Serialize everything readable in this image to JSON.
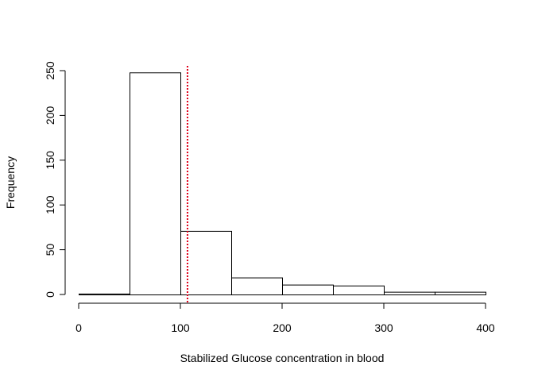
{
  "chart_data": {
    "type": "bar",
    "title": "",
    "xlabel": "Stabilized Glucose concentration in blood",
    "ylabel": "Frequency",
    "bins": [
      {
        "start": 0,
        "end": 50,
        "count": 1
      },
      {
        "start": 50,
        "end": 100,
        "count": 248
      },
      {
        "start": 100,
        "end": 150,
        "count": 71
      },
      {
        "start": 150,
        "end": 200,
        "count": 19
      },
      {
        "start": 200,
        "end": 250,
        "count": 11
      },
      {
        "start": 250,
        "end": 300,
        "count": 10
      },
      {
        "start": 300,
        "end": 350,
        "count": 3
      },
      {
        "start": 350,
        "end": 400,
        "count": 3
      }
    ],
    "xlim": [
      0,
      400
    ],
    "ylim": [
      0,
      250
    ],
    "x_ticks": [
      0,
      100,
      200,
      300,
      400
    ],
    "y_ticks": [
      0,
      50,
      100,
      150,
      200,
      250
    ],
    "mean_line": {
      "x": 107,
      "color": "#e0001a",
      "style": "dotted"
    },
    "grid": false,
    "legend": "none"
  }
}
